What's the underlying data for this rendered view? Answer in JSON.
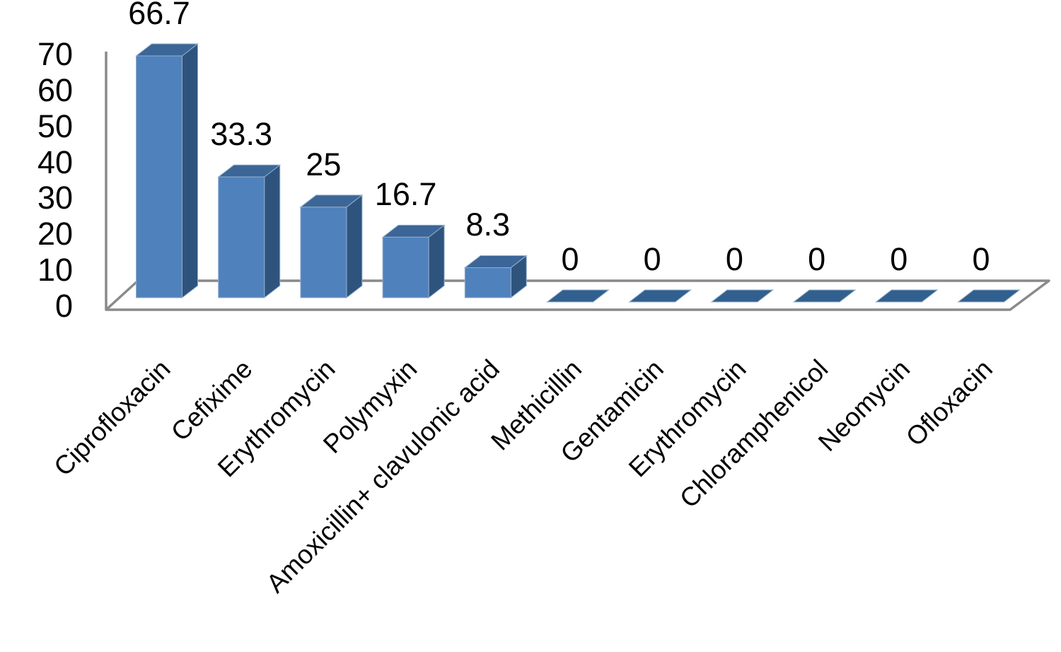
{
  "chart_data": {
    "type": "bar",
    "variant": "3d-column",
    "title": "",
    "xlabel": "",
    "ylabel": "",
    "categories": [
      "Ciprofloxacin",
      "Cefixime",
      "Erythromycin",
      "Polymyxin",
      "Amoxicillin+ clavulonic acid",
      "Methicillin",
      "Gentamicin",
      "Erythromycin",
      "Chloramphenicol",
      "Neomycin",
      "Ofloxacin"
    ],
    "values": [
      66.7,
      33.3,
      25,
      16.7,
      8.3,
      0,
      0,
      0,
      0,
      0,
      0
    ],
    "data_labels": [
      "66.7",
      "33.3",
      "25",
      "16.7",
      "8.3",
      "0",
      "0",
      "0",
      "0",
      "0",
      "0"
    ],
    "yticks": [
      "70",
      "60",
      "50",
      "40",
      "30",
      "20",
      "10",
      "0"
    ],
    "ylim": [
      0,
      70
    ],
    "ytick_step": 10,
    "grid": false,
    "legend": "none",
    "category_label_rotation_deg": 45,
    "colors": {
      "bar_front": "#4F81BD",
      "bar_top": "#3B6697",
      "bar_side": "#2E547E",
      "zero_bar": "#31608E",
      "bar_edge": "#94AECE",
      "axis_line": "#8A8A8A",
      "floor_fill": "#FFFFFF",
      "text": "#000000",
      "background": "#FFFFFF"
    }
  }
}
